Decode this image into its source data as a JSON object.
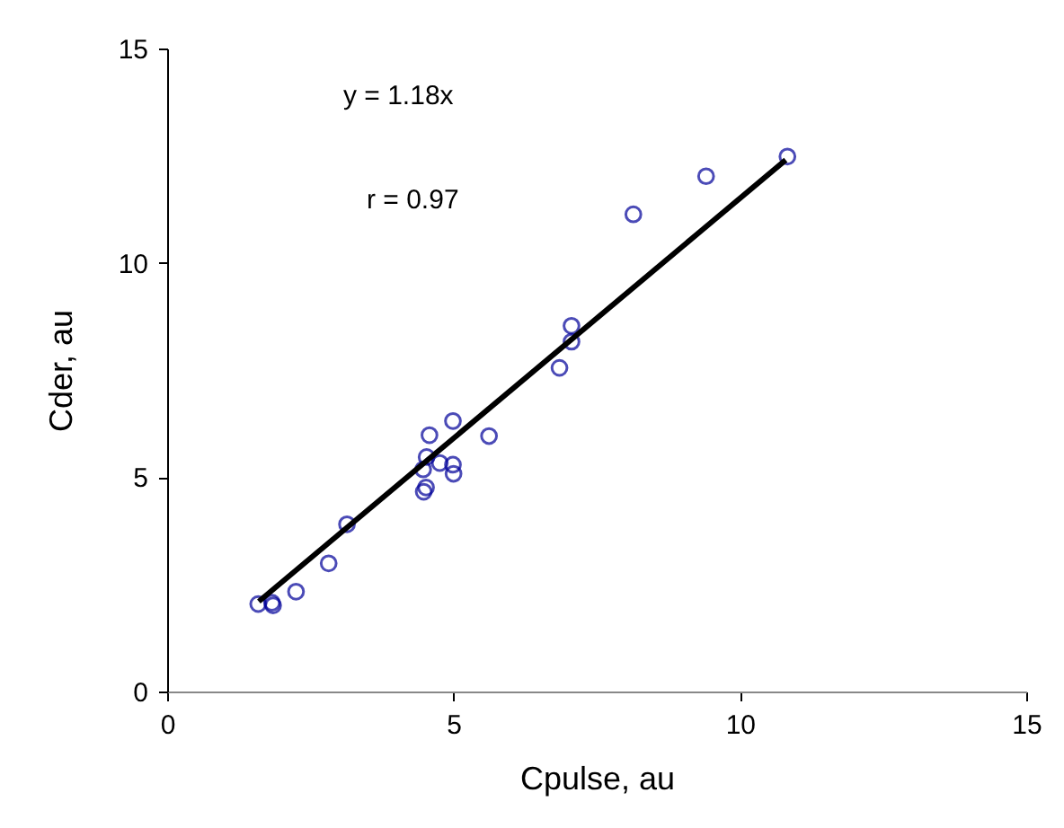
{
  "chart_data": {
    "type": "scatter",
    "xlabel": "Cpulse, au",
    "ylabel": "Cder, au",
    "xlim": [
      0,
      15
    ],
    "ylim": [
      0,
      15
    ],
    "xticks": [
      0,
      5,
      10,
      15
    ],
    "yticks": [
      0,
      5,
      10,
      15
    ],
    "grid": false,
    "annotations": [
      "y = 1.18x",
      "r = 0.97"
    ],
    "series": [
      {
        "marker": "circle",
        "color": "#000099",
        "x": [
          1.59,
          1.83,
          1.85,
          2.25,
          2.82,
          3.14,
          4.48,
          4.52,
          4.47,
          4.53,
          4.58,
          4.76,
          4.99,
          5.0,
          4.99,
          5.62,
          6.85,
          7.06,
          7.06,
          8.14,
          9.41,
          10.83
        ],
        "values": [
          2.04,
          2.07,
          2.01,
          2.33,
          2.99,
          3.9,
          4.66,
          4.76,
          5.18,
          5.47,
          5.98,
          5.33,
          5.29,
          5.08,
          6.31,
          5.96,
          7.55,
          8.16,
          8.53,
          11.13,
          12.02,
          12.48
        ]
      },
      {
        "type": "line",
        "color": "#000000",
        "x": [
          1.6,
          10.8
        ],
        "values": [
          2.1,
          12.4
        ]
      }
    ]
  }
}
